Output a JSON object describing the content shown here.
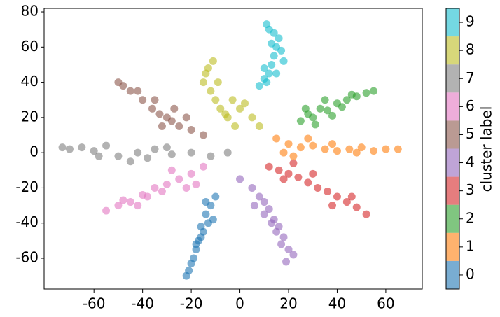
{
  "chart_data": {
    "type": "scatter",
    "xlim": [
      -80.5,
      75
    ],
    "ylim": [
      -77.5,
      82
    ],
    "xticks": [
      -60,
      -40,
      -20,
      0,
      20,
      40,
      60
    ],
    "yticks": [
      -60,
      -40,
      -20,
      0,
      20,
      40,
      60,
      80
    ],
    "series": [
      {
        "color": "#1f77b4",
        "x": [
          -10,
          -12,
          -14,
          -13,
          -15,
          -16,
          -17,
          -18,
          -16,
          -19,
          -20,
          -21,
          -22,
          -14,
          -11,
          -18
        ],
        "values": [
          -25,
          -30,
          -35,
          -40,
          -45,
          -42,
          -50,
          -55,
          -48,
          -60,
          -63,
          -67,
          -70,
          -28,
          -38,
          -52
        ]
      },
      {
        "color": "#ff7f0e",
        "x": [
          15,
          20,
          25,
          30,
          35,
          40,
          45,
          50,
          55,
          60,
          65,
          22,
          28,
          38,
          48,
          18
        ],
        "values": [
          8,
          5,
          3,
          4,
          2,
          1,
          2,
          3,
          1,
          2,
          2,
          -2,
          8,
          5,
          0,
          0
        ]
      },
      {
        "color": "#2ca02c",
        "x": [
          25,
          28,
          30,
          33,
          36,
          40,
          44,
          48,
          52,
          55,
          31,
          27,
          38,
          46,
          35,
          42
        ],
        "values": [
          18,
          22,
          20,
          25,
          24,
          28,
          30,
          32,
          34,
          35,
          16,
          25,
          21,
          33,
          30,
          26
        ]
      },
      {
        "color": "#d62728",
        "x": [
          12,
          16,
          20,
          24,
          28,
          32,
          36,
          40,
          44,
          48,
          52,
          22,
          30,
          38,
          18,
          46
        ],
        "values": [
          -8,
          -10,
          -12,
          -14,
          -17,
          -20,
          -22,
          -25,
          -28,
          -31,
          -35,
          -6,
          -12,
          -30,
          -15,
          -25
        ]
      },
      {
        "color": "#9467bd",
        "x": [
          0,
          5,
          8,
          10,
          12,
          14,
          16,
          18,
          20,
          19,
          15,
          10,
          6,
          17,
          13,
          22
        ],
        "values": [
          -15,
          -20,
          -25,
          -28,
          -32,
          -38,
          -42,
          -48,
          -55,
          -62,
          -45,
          -35,
          -30,
          -52,
          -40,
          -58
        ]
      },
      {
        "color": "#8c564b",
        "x": [
          -15,
          -20,
          -25,
          -28,
          -30,
          -33,
          -36,
          -40,
          -45,
          -50,
          -35,
          -27,
          -22,
          -42,
          -32,
          -48
        ],
        "values": [
          10,
          13,
          15,
          18,
          20,
          22,
          25,
          30,
          35,
          40,
          30,
          25,
          20,
          35,
          15,
          38
        ]
      },
      {
        "color": "#e377c2",
        "x": [
          -15,
          -20,
          -25,
          -30,
          -35,
          -40,
          -45,
          -50,
          -55,
          -28,
          -38,
          -22,
          -32,
          -48,
          -18,
          -42
        ],
        "values": [
          -8,
          -12,
          -15,
          -18,
          -20,
          -24,
          -28,
          -30,
          -33,
          -10,
          -25,
          -20,
          -22,
          -27,
          -18,
          -30
        ]
      },
      {
        "color": "#7f7f7f",
        "x": [
          -5,
          -12,
          -20,
          -28,
          -35,
          -42,
          -50,
          -55,
          -60,
          -65,
          -70,
          -73,
          -45,
          -30,
          -38,
          -58
        ],
        "values": [
          0,
          -2,
          0,
          -1,
          2,
          0,
          -2,
          4,
          1,
          3,
          2,
          3,
          -5,
          3,
          -3,
          -2
        ]
      },
      {
        "color": "#bcbd22",
        "x": [
          -2,
          -5,
          -8,
          -10,
          -12,
          -15,
          -14,
          -11,
          -6,
          0,
          5,
          8,
          -3,
          -9,
          -13,
          2
        ],
        "values": [
          15,
          20,
          25,
          30,
          35,
          40,
          45,
          52,
          22,
          25,
          20,
          15,
          30,
          40,
          48,
          28
        ]
      },
      {
        "color": "#17becf",
        "x": [
          8,
          10,
          12,
          13,
          14,
          15,
          16,
          12,
          11,
          14,
          17,
          10,
          13,
          15,
          18,
          11
        ],
        "values": [
          38,
          42,
          45,
          50,
          55,
          60,
          65,
          70,
          73,
          68,
          58,
          48,
          62,
          45,
          52,
          40
        ]
      }
    ],
    "colorbar": {
      "label": "cluster label",
      "lim": [
        -0.5,
        9.5
      ],
      "ticks": [
        0,
        1,
        2,
        3,
        4,
        5,
        6,
        7,
        8,
        9
      ]
    }
  }
}
